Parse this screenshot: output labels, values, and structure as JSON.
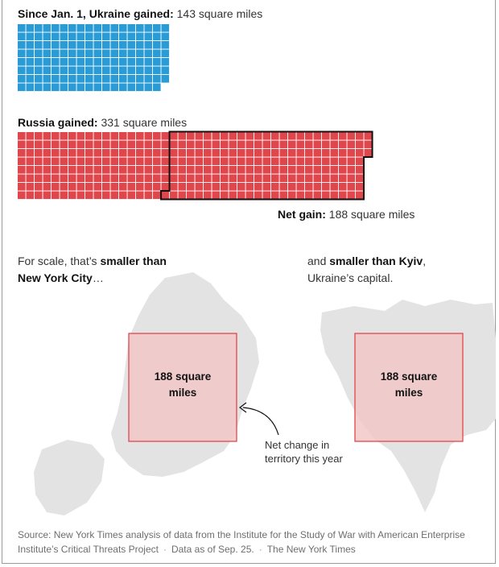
{
  "chart_data": {
    "type": "waffle",
    "unit": "square miles",
    "series": [
      {
        "name": "Since Jan. 1, Ukraine gained:",
        "value": 143,
        "color": "#2a9bd5"
      },
      {
        "name": "Russia gained:",
        "value": 331,
        "color": "#e0474c"
      }
    ],
    "net_gain": {
      "label": "Net gain:",
      "value": 188
    }
  },
  "labels": {
    "ukraine_bold": "Since Jan. 1, Ukraine gained:",
    "ukraine_value": "143 square miles",
    "russia_bold": "Russia gained:",
    "russia_value": "331 square miles",
    "net_bold": "Net gain:",
    "net_value": "188 square miles"
  },
  "scale": {
    "nyc_prefix": "For scale, that’s ",
    "nyc_bold1": "smaller than",
    "nyc_bold2": "New York City",
    "nyc_suffix": "…",
    "kyiv_prefix": "and ",
    "kyiv_bold": "smaller than Kyiv",
    "kyiv_suffix": ",",
    "kyiv_line2": "Ukraine’s capital.",
    "box_nyc": "188 square miles",
    "box_kyiv": "188 square miles",
    "annotation_line1": "Net change in",
    "annotation_line2": "territory this year"
  },
  "source": {
    "line1": "Source: New York Times analysis of data from the Institute for the Study of War with American Enterprise",
    "line2": "Institute’s Critical Threats Project",
    "date": "Data as of Sep. 25.",
    "credit": "The New York Times"
  },
  "colors": {
    "ukraine": "#2a9bd5",
    "russia": "#e0474c",
    "map": "#e3e3e3",
    "box_fill": "#f2c4c4",
    "box_stroke": "#e0474c"
  }
}
